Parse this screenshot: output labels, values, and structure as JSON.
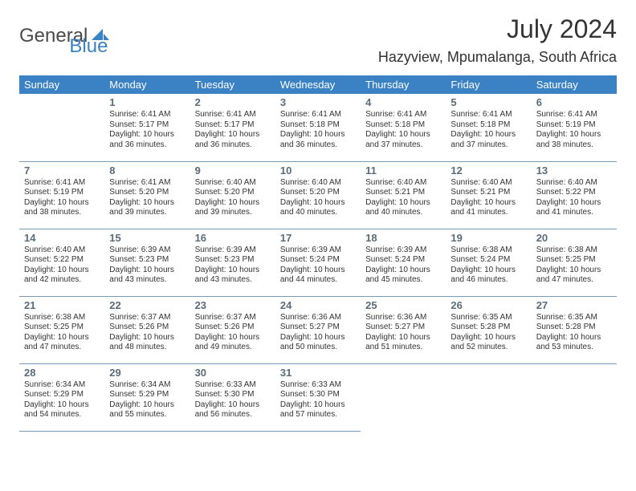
{
  "logo": {
    "part1": "General",
    "part2": "Blue"
  },
  "title": "July 2024",
  "location": "Hazyview, Mpumalanga, South Africa",
  "colors": {
    "header_bg": "#3b82c4",
    "header_text": "#ffffff",
    "daynum": "#5a6b7a",
    "body_text": "#333333",
    "border": "#7a99b5",
    "logo_gray": "#4a4a4a",
    "logo_blue": "#3b82c4",
    "background": "#ffffff"
  },
  "typography": {
    "title_fontsize": 32,
    "location_fontsize": 18,
    "dow_fontsize": 13,
    "daynum_fontsize": 13,
    "cell_fontsize": 10
  },
  "daysOfWeek": [
    "Sunday",
    "Monday",
    "Tuesday",
    "Wednesday",
    "Thursday",
    "Friday",
    "Saturday"
  ],
  "weeks": [
    [
      null,
      {
        "n": "1",
        "sunrise": "Sunrise: 6:41 AM",
        "sunset": "Sunset: 5:17 PM",
        "day1": "Daylight: 10 hours",
        "day2": "and 36 minutes."
      },
      {
        "n": "2",
        "sunrise": "Sunrise: 6:41 AM",
        "sunset": "Sunset: 5:17 PM",
        "day1": "Daylight: 10 hours",
        "day2": "and 36 minutes."
      },
      {
        "n": "3",
        "sunrise": "Sunrise: 6:41 AM",
        "sunset": "Sunset: 5:18 PM",
        "day1": "Daylight: 10 hours",
        "day2": "and 36 minutes."
      },
      {
        "n": "4",
        "sunrise": "Sunrise: 6:41 AM",
        "sunset": "Sunset: 5:18 PM",
        "day1": "Daylight: 10 hours",
        "day2": "and 37 minutes."
      },
      {
        "n": "5",
        "sunrise": "Sunrise: 6:41 AM",
        "sunset": "Sunset: 5:18 PM",
        "day1": "Daylight: 10 hours",
        "day2": "and 37 minutes."
      },
      {
        "n": "6",
        "sunrise": "Sunrise: 6:41 AM",
        "sunset": "Sunset: 5:19 PM",
        "day1": "Daylight: 10 hours",
        "day2": "and 38 minutes."
      }
    ],
    [
      {
        "n": "7",
        "sunrise": "Sunrise: 6:41 AM",
        "sunset": "Sunset: 5:19 PM",
        "day1": "Daylight: 10 hours",
        "day2": "and 38 minutes."
      },
      {
        "n": "8",
        "sunrise": "Sunrise: 6:41 AM",
        "sunset": "Sunset: 5:20 PM",
        "day1": "Daylight: 10 hours",
        "day2": "and 39 minutes."
      },
      {
        "n": "9",
        "sunrise": "Sunrise: 6:40 AM",
        "sunset": "Sunset: 5:20 PM",
        "day1": "Daylight: 10 hours",
        "day2": "and 39 minutes."
      },
      {
        "n": "10",
        "sunrise": "Sunrise: 6:40 AM",
        "sunset": "Sunset: 5:20 PM",
        "day1": "Daylight: 10 hours",
        "day2": "and 40 minutes."
      },
      {
        "n": "11",
        "sunrise": "Sunrise: 6:40 AM",
        "sunset": "Sunset: 5:21 PM",
        "day1": "Daylight: 10 hours",
        "day2": "and 40 minutes."
      },
      {
        "n": "12",
        "sunrise": "Sunrise: 6:40 AM",
        "sunset": "Sunset: 5:21 PM",
        "day1": "Daylight: 10 hours",
        "day2": "and 41 minutes."
      },
      {
        "n": "13",
        "sunrise": "Sunrise: 6:40 AM",
        "sunset": "Sunset: 5:22 PM",
        "day1": "Daylight: 10 hours",
        "day2": "and 41 minutes."
      }
    ],
    [
      {
        "n": "14",
        "sunrise": "Sunrise: 6:40 AM",
        "sunset": "Sunset: 5:22 PM",
        "day1": "Daylight: 10 hours",
        "day2": "and 42 minutes."
      },
      {
        "n": "15",
        "sunrise": "Sunrise: 6:39 AM",
        "sunset": "Sunset: 5:23 PM",
        "day1": "Daylight: 10 hours",
        "day2": "and 43 minutes."
      },
      {
        "n": "16",
        "sunrise": "Sunrise: 6:39 AM",
        "sunset": "Sunset: 5:23 PM",
        "day1": "Daylight: 10 hours",
        "day2": "and 43 minutes."
      },
      {
        "n": "17",
        "sunrise": "Sunrise: 6:39 AM",
        "sunset": "Sunset: 5:24 PM",
        "day1": "Daylight: 10 hours",
        "day2": "and 44 minutes."
      },
      {
        "n": "18",
        "sunrise": "Sunrise: 6:39 AM",
        "sunset": "Sunset: 5:24 PM",
        "day1": "Daylight: 10 hours",
        "day2": "and 45 minutes."
      },
      {
        "n": "19",
        "sunrise": "Sunrise: 6:38 AM",
        "sunset": "Sunset: 5:24 PM",
        "day1": "Daylight: 10 hours",
        "day2": "and 46 minutes."
      },
      {
        "n": "20",
        "sunrise": "Sunrise: 6:38 AM",
        "sunset": "Sunset: 5:25 PM",
        "day1": "Daylight: 10 hours",
        "day2": "and 47 minutes."
      }
    ],
    [
      {
        "n": "21",
        "sunrise": "Sunrise: 6:38 AM",
        "sunset": "Sunset: 5:25 PM",
        "day1": "Daylight: 10 hours",
        "day2": "and 47 minutes."
      },
      {
        "n": "22",
        "sunrise": "Sunrise: 6:37 AM",
        "sunset": "Sunset: 5:26 PM",
        "day1": "Daylight: 10 hours",
        "day2": "and 48 minutes."
      },
      {
        "n": "23",
        "sunrise": "Sunrise: 6:37 AM",
        "sunset": "Sunset: 5:26 PM",
        "day1": "Daylight: 10 hours",
        "day2": "and 49 minutes."
      },
      {
        "n": "24",
        "sunrise": "Sunrise: 6:36 AM",
        "sunset": "Sunset: 5:27 PM",
        "day1": "Daylight: 10 hours",
        "day2": "and 50 minutes."
      },
      {
        "n": "25",
        "sunrise": "Sunrise: 6:36 AM",
        "sunset": "Sunset: 5:27 PM",
        "day1": "Daylight: 10 hours",
        "day2": "and 51 minutes."
      },
      {
        "n": "26",
        "sunrise": "Sunrise: 6:35 AM",
        "sunset": "Sunset: 5:28 PM",
        "day1": "Daylight: 10 hours",
        "day2": "and 52 minutes."
      },
      {
        "n": "27",
        "sunrise": "Sunrise: 6:35 AM",
        "sunset": "Sunset: 5:28 PM",
        "day1": "Daylight: 10 hours",
        "day2": "and 53 minutes."
      }
    ],
    [
      {
        "n": "28",
        "sunrise": "Sunrise: 6:34 AM",
        "sunset": "Sunset: 5:29 PM",
        "day1": "Daylight: 10 hours",
        "day2": "and 54 minutes."
      },
      {
        "n": "29",
        "sunrise": "Sunrise: 6:34 AM",
        "sunset": "Sunset: 5:29 PM",
        "day1": "Daylight: 10 hours",
        "day2": "and 55 minutes."
      },
      {
        "n": "30",
        "sunrise": "Sunrise: 6:33 AM",
        "sunset": "Sunset: 5:30 PM",
        "day1": "Daylight: 10 hours",
        "day2": "and 56 minutes."
      },
      {
        "n": "31",
        "sunrise": "Sunrise: 6:33 AM",
        "sunset": "Sunset: 5:30 PM",
        "day1": "Daylight: 10 hours",
        "day2": "and 57 minutes."
      },
      null,
      null,
      null
    ]
  ]
}
